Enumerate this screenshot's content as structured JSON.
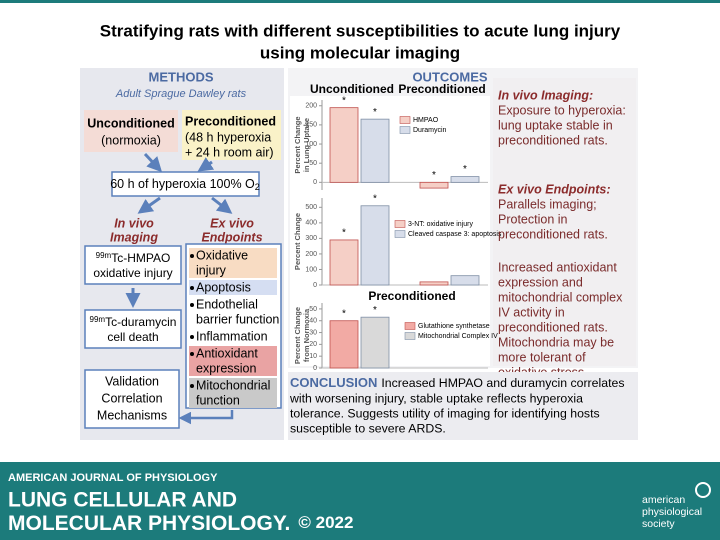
{
  "header": {
    "title_lines": [
      "Stratifying rats with different susceptibilities to acute lung injury",
      "using molecular imaging"
    ]
  },
  "methods": {
    "title": "METHODS",
    "subtitle": "Adult Sprague Dawley rats",
    "groups": [
      {
        "title": "Unconditioned",
        "detail": [
          "(normoxia)"
        ]
      },
      {
        "title": "Preconditioned",
        "detail": [
          "(48 h hyperoxia",
          "+ 24 h room air)"
        ]
      }
    ],
    "exposure": {
      "text": "60 h of hyperoxia 100% O",
      "subscript": "2"
    },
    "in_vivo": {
      "title": [
        "In vivo",
        "Imaging"
      ],
      "probes": [
        {
          "isotope": "99m",
          "name": "Tc-HMPAO",
          "role": "oxidative injury"
        },
        {
          "isotope": "99m",
          "name": "Tc-duramycin",
          "role": "cell death"
        }
      ]
    },
    "ex_vivo": {
      "title": [
        "Ex vivo",
        "Endpoints"
      ],
      "items": [
        {
          "lines": [
            "Oxidative",
            "injury"
          ],
          "highlight": "#f8dcc3"
        },
        {
          "lines": [
            "Apoptosis"
          ],
          "highlight": "#d5def2"
        },
        {
          "lines": [
            "Endothelial",
            "barrier function"
          ],
          "highlight": null
        },
        {
          "lines": [
            "Inflammation"
          ],
          "highlight": null
        },
        {
          "lines": [
            "Antioxidant",
            "expression"
          ],
          "highlight": "#e9a3a3"
        },
        {
          "lines": [
            "Mitochondrial",
            "function"
          ],
          "highlight": "#c9c9c9"
        }
      ]
    },
    "validation": [
      "Validation",
      "Correlation",
      "Mechanisms"
    ]
  },
  "outcomes": {
    "title": "OUTCOMES",
    "findings": [
      {
        "heading": "In vivo Imaging:",
        "lines": [
          "Exposure to hyperoxia:",
          "lung uptake stable in",
          "preconditioned rats."
        ]
      },
      {
        "heading": "Ex vivo Endpoints:",
        "lines": [
          "Parallels imaging;",
          "Protection in",
          "preconditioned rats."
        ]
      },
      {
        "heading": null,
        "lines": [
          "Increased antioxidant",
          "expression and",
          "mitochondrial complex",
          "IV activity in",
          "preconditioned rats.",
          "Mitochondria may be",
          "more tolerant of",
          "oxidative stress."
        ]
      }
    ]
  },
  "conclusion": {
    "label": "CONCLUSION",
    "lines": [
      "Increased HMPAO and duramycin correlates",
      "with worsening injury, stable uptake reflects hyperoxia",
      "tolerance. Suggests utility of imaging for identifying hosts",
      "susceptible to severe ARDS."
    ]
  },
  "footer": {
    "journal": "AMERICAN JOURNAL OF PHYSIOLOGY",
    "name_lines": [
      "LUNG CELLULAR AND",
      "MOLECULAR PHYSIOLOGY."
    ],
    "copyright": "© 2022",
    "society": [
      "american",
      "physiological",
      "society"
    ]
  },
  "chart_data": [
    {
      "type": "bar",
      "groups": [
        "Unconditioned",
        "Preconditioned"
      ],
      "y_label": [
        "Percent Change",
        "in Lung Uptake"
      ],
      "ylim": [
        -20,
        215
      ],
      "yticks": [
        0,
        50,
        100,
        150,
        200
      ],
      "series": [
        {
          "name": "HMPAO",
          "color": "#f5cfc6",
          "values": [
            195,
            -15
          ],
          "markers": [
            "*",
            "*"
          ]
        },
        {
          "name": "Duramycin",
          "color": "#d7ddea",
          "values": [
            165,
            15
          ],
          "markers": [
            "*",
            "*"
          ]
        }
      ]
    },
    {
      "type": "bar",
      "y_label": [
        "Percent Change"
      ],
      "ylim": [
        0,
        560
      ],
      "yticks": [
        0,
        100,
        200,
        300,
        400,
        500
      ],
      "series": [
        {
          "name": "3-NT: oxidative injury",
          "color": "#f5cfc6",
          "values": [
            290,
            20
          ],
          "markers": [
            "*",
            null
          ]
        },
        {
          "name": "Cleaved caspase 3: apoptosis",
          "color": "#d7ddea",
          "values": [
            510,
            60
          ],
          "markers": [
            "*",
            null
          ]
        }
      ]
    },
    {
      "type": "bar",
      "groups": [
        "Preconditioned"
      ],
      "y_label": [
        "Percent Change",
        "from Normoxia"
      ],
      "ylim": [
        0,
        55
      ],
      "yticks": [
        0,
        10,
        20,
        30,
        40,
        50
      ],
      "series": [
        {
          "name": "Glutathione synthetase",
          "color": "#f2aaa4",
          "values": [
            40
          ],
          "markers": [
            "*"
          ]
        },
        {
          "name": "Mitochondrial Complex IV",
          "color": "#d9d9d9",
          "values": [
            43
          ],
          "markers": [
            "*"
          ]
        }
      ]
    }
  ]
}
